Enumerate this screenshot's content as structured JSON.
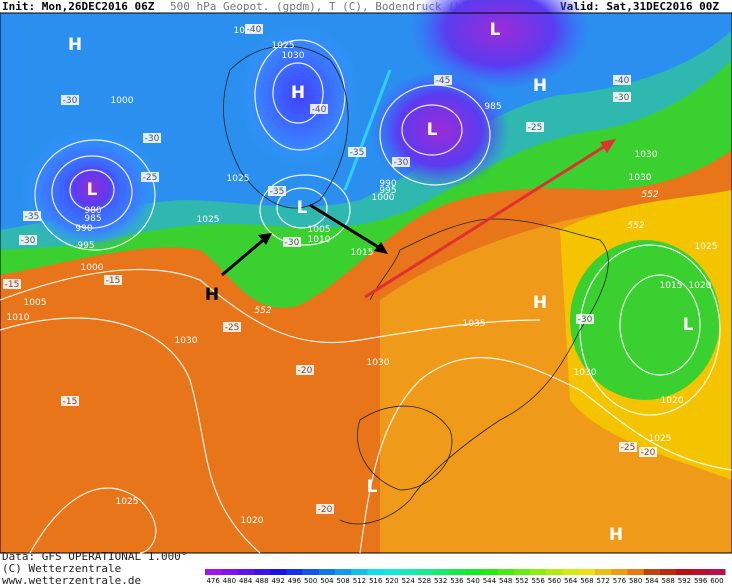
{
  "header": {
    "init": "Init: Mon,26DEC2016 06Z",
    "title": "500 hPa Geopot. (gpdm), T (C), Bodendruck (hPa)",
    "valid": "Valid: Sat,31DEC2016 00Z"
  },
  "footer": {
    "data": "Data: GFS OPERATIONAL 1.000°",
    "copyright": "(C) Wetterzentrale",
    "url": "www.wetterzentrale.de"
  },
  "pressure_labels": [
    "1020",
    "1025",
    "1030",
    "1000",
    "985",
    "1025",
    "990",
    "995",
    "1000",
    "980",
    "985",
    "990",
    "995",
    "1005",
    "1010",
    "1015",
    "1025",
    "1000",
    "1005",
    "1010",
    "1030",
    "1030",
    "1035",
    "1030",
    "1030",
    "1030",
    "1025",
    "1015",
    "1020",
    "1020",
    "1025",
    "1025",
    "1020"
  ],
  "temperature_labels": [
    "-30",
    "-30",
    "-25",
    "-35",
    "-30",
    "-15",
    "-40",
    "-40",
    "-35",
    "-30",
    "-25",
    "-20",
    "-15",
    "-20",
    "-45",
    "-35",
    "-30",
    "-25",
    "-40",
    "-30",
    "-30",
    "-25",
    "-20",
    "-15"
  ],
  "geopotential_labels": [
    "552",
    "552",
    "552"
  ],
  "pressure_centers": [
    "H",
    "L",
    "H",
    "L",
    "L",
    "H",
    "H",
    "L",
    "L",
    "H",
    "H",
    "L"
  ],
  "colorbar": [
    "476",
    "480",
    "484",
    "488",
    "492",
    "496",
    "500",
    "504",
    "508",
    "512",
    "516",
    "520",
    "524",
    "528",
    "532",
    "536",
    "540",
    "544",
    "548",
    "552",
    "556",
    "560",
    "564",
    "568",
    "572",
    "576",
    "580",
    "584",
    "588",
    "592",
    "596",
    "600"
  ]
}
